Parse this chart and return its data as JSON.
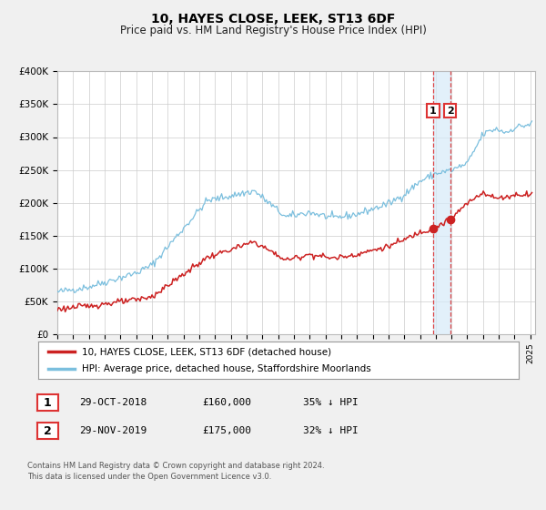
{
  "title": "10, HAYES CLOSE, LEEK, ST13 6DF",
  "subtitle": "Price paid vs. HM Land Registry's House Price Index (HPI)",
  "ylim": [
    0,
    400000
  ],
  "yticks": [
    0,
    50000,
    100000,
    150000,
    200000,
    250000,
    300000,
    350000,
    400000
  ],
  "ytick_labels": [
    "£0",
    "£50K",
    "£100K",
    "£150K",
    "£200K",
    "£250K",
    "£300K",
    "£350K",
    "£400K"
  ],
  "hpi_color": "#7bbfde",
  "price_color": "#cc2222",
  "vline_color": "#dd3333",
  "marker_color": "#cc2222",
  "shade_color": "#d6eaf8",
  "legend_label_price": "10, HAYES CLOSE, LEEK, ST13 6DF (detached house)",
  "legend_label_hpi": "HPI: Average price, detached house, Staffordshire Moorlands",
  "annotation1_label": "1",
  "annotation1_date": "29-OCT-2018",
  "annotation1_price": "£160,000",
  "annotation1_pct": "35% ↓ HPI",
  "annotation1_year": 2018.83,
  "annotation1_value": 160000,
  "annotation2_label": "2",
  "annotation2_date": "29-NOV-2019",
  "annotation2_price": "£175,000",
  "annotation2_pct": "32% ↓ HPI",
  "annotation2_year": 2019.92,
  "annotation2_value": 175000,
  "footer1": "Contains HM Land Registry data © Crown copyright and database right 2024.",
  "footer2": "This data is licensed under the Open Government Licence v3.0.",
  "background_color": "#f0f0f0",
  "plot_bg_color": "#ffffff",
  "grid_color": "#cccccc"
}
